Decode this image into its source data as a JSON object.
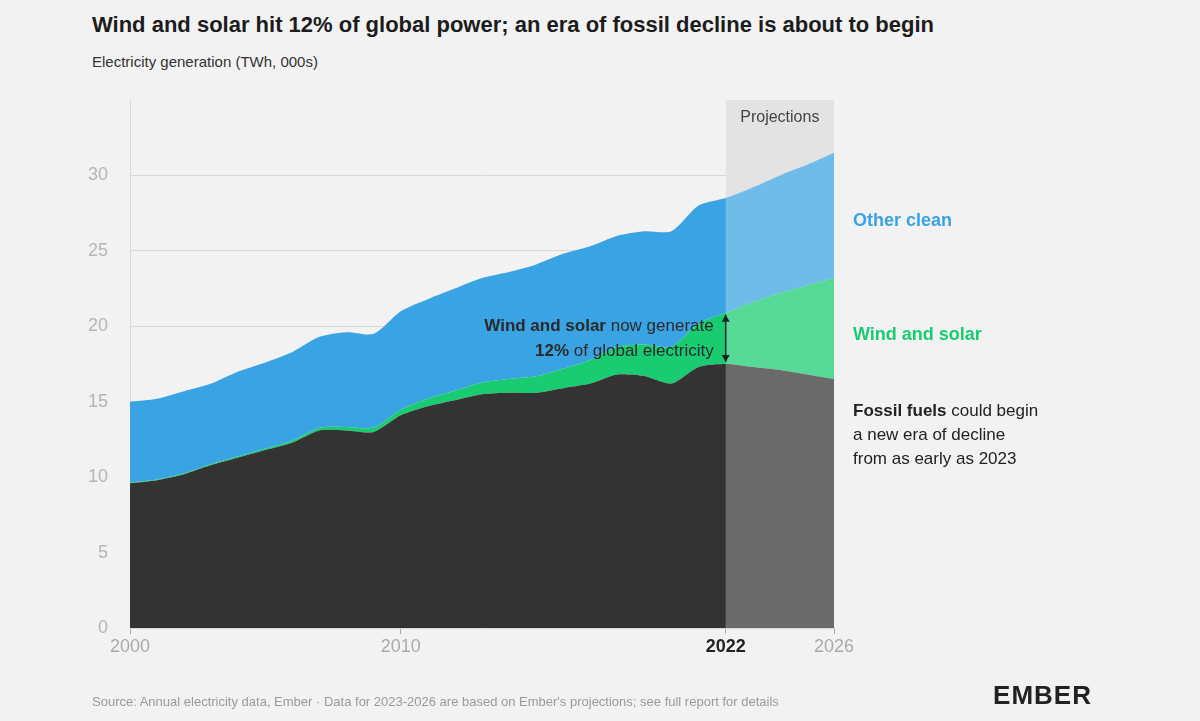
{
  "chart_data": {
    "type": "area",
    "title": "Wind and solar hit 12% of global power; an era of fossil decline is about to begin",
    "subtitle": "Electricity generation (TWh, 000s)",
    "source": "Source: Annual electricity data, Ember · Data for 2023-2026 are based on Ember's projections; see full report for details",
    "credit": "EMBER",
    "x": [
      2000,
      2001,
      2002,
      2003,
      2004,
      2005,
      2006,
      2007,
      2008,
      2009,
      2010,
      2011,
      2012,
      2013,
      2014,
      2015,
      2016,
      2017,
      2018,
      2019,
      2020,
      2021,
      2022,
      2023,
      2024,
      2025,
      2026
    ],
    "series": [
      {
        "name": "Fossil fuels",
        "color": "#333333",
        "values": [
          9.6,
          9.8,
          10.2,
          10.8,
          11.3,
          11.8,
          12.3,
          13.1,
          13.1,
          13.0,
          14.1,
          14.7,
          15.1,
          15.5,
          15.6,
          15.6,
          15.9,
          16.2,
          16.8,
          16.7,
          16.2,
          17.3,
          17.5,
          17.3,
          17.1,
          16.8,
          16.5
        ]
      },
      {
        "name": "Wind and solar",
        "color": "#19cc72",
        "values": [
          0.03,
          0.04,
          0.05,
          0.07,
          0.09,
          0.1,
          0.13,
          0.18,
          0.23,
          0.29,
          0.37,
          0.49,
          0.62,
          0.77,
          0.9,
          1.08,
          1.28,
          1.57,
          1.85,
          2.1,
          2.45,
          2.9,
          3.4,
          4.3,
          5.1,
          5.9,
          6.7
        ]
      },
      {
        "name": "Other clean",
        "color": "#3aa3e3",
        "values": [
          5.37,
          5.36,
          5.45,
          5.33,
          5.61,
          5.7,
          5.87,
          6.02,
          6.27,
          6.21,
          6.53,
          6.61,
          6.78,
          6.93,
          7.1,
          7.42,
          7.62,
          7.53,
          7.35,
          7.5,
          7.65,
          7.8,
          7.6,
          7.6,
          7.8,
          8.0,
          8.3
        ]
      }
    ],
    "stacked": true,
    "grid": true,
    "xlim": [
      2000,
      2026
    ],
    "xticks": [
      2000,
      2010,
      2022,
      2026
    ],
    "ylim": [
      0,
      35
    ],
    "yticks": [
      0,
      5,
      10,
      15,
      20,
      25,
      30
    ],
    "annotations": [
      {
        "text": [
          "Projections"
        ],
        "xmin": 2022,
        "xmax": 2026
      },
      {
        "text": [
          "Wind and solar now generate",
          "12% of global electricity"
        ],
        "x": 2022
      },
      {
        "text": [
          "Fossil fuels could begin",
          "a new era of decline",
          "from as early as 2023"
        ]
      }
    ]
  }
}
